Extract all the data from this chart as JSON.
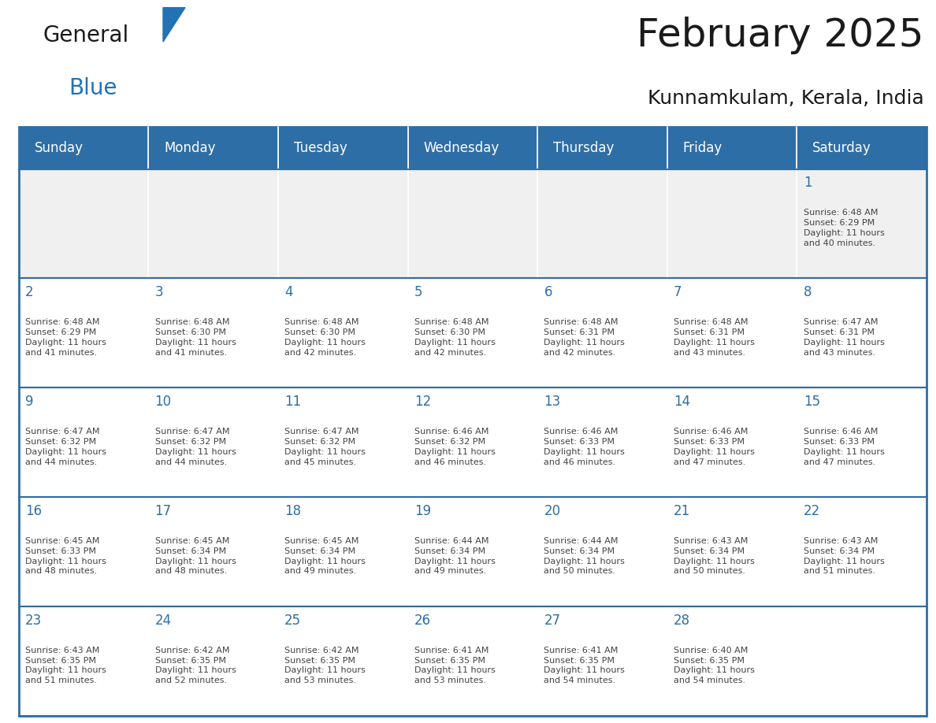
{
  "title": "February 2025",
  "subtitle": "Kunnamkulam, Kerala, India",
  "header_bg": "#2E6EA6",
  "header_text_color": "#FFFFFF",
  "cell_bg_light": "#F0F0F0",
  "cell_bg_white": "#FFFFFF",
  "day_number_color": "#2E6EA6",
  "text_color": "#444444",
  "border_color": "#2E6EA6",
  "weekdays": [
    "Sunday",
    "Monday",
    "Tuesday",
    "Wednesday",
    "Thursday",
    "Friday",
    "Saturday"
  ],
  "weeks": [
    [
      {
        "day": 0,
        "info": ""
      },
      {
        "day": 0,
        "info": ""
      },
      {
        "day": 0,
        "info": ""
      },
      {
        "day": 0,
        "info": ""
      },
      {
        "day": 0,
        "info": ""
      },
      {
        "day": 0,
        "info": ""
      },
      {
        "day": 1,
        "info": "Sunrise: 6:48 AM\nSunset: 6:29 PM\nDaylight: 11 hours\nand 40 minutes."
      }
    ],
    [
      {
        "day": 2,
        "info": "Sunrise: 6:48 AM\nSunset: 6:29 PM\nDaylight: 11 hours\nand 41 minutes."
      },
      {
        "day": 3,
        "info": "Sunrise: 6:48 AM\nSunset: 6:30 PM\nDaylight: 11 hours\nand 41 minutes."
      },
      {
        "day": 4,
        "info": "Sunrise: 6:48 AM\nSunset: 6:30 PM\nDaylight: 11 hours\nand 42 minutes."
      },
      {
        "day": 5,
        "info": "Sunrise: 6:48 AM\nSunset: 6:30 PM\nDaylight: 11 hours\nand 42 minutes."
      },
      {
        "day": 6,
        "info": "Sunrise: 6:48 AM\nSunset: 6:31 PM\nDaylight: 11 hours\nand 42 minutes."
      },
      {
        "day": 7,
        "info": "Sunrise: 6:48 AM\nSunset: 6:31 PM\nDaylight: 11 hours\nand 43 minutes."
      },
      {
        "day": 8,
        "info": "Sunrise: 6:47 AM\nSunset: 6:31 PM\nDaylight: 11 hours\nand 43 minutes."
      }
    ],
    [
      {
        "day": 9,
        "info": "Sunrise: 6:47 AM\nSunset: 6:32 PM\nDaylight: 11 hours\nand 44 minutes."
      },
      {
        "day": 10,
        "info": "Sunrise: 6:47 AM\nSunset: 6:32 PM\nDaylight: 11 hours\nand 44 minutes."
      },
      {
        "day": 11,
        "info": "Sunrise: 6:47 AM\nSunset: 6:32 PM\nDaylight: 11 hours\nand 45 minutes."
      },
      {
        "day": 12,
        "info": "Sunrise: 6:46 AM\nSunset: 6:32 PM\nDaylight: 11 hours\nand 46 minutes."
      },
      {
        "day": 13,
        "info": "Sunrise: 6:46 AM\nSunset: 6:33 PM\nDaylight: 11 hours\nand 46 minutes."
      },
      {
        "day": 14,
        "info": "Sunrise: 6:46 AM\nSunset: 6:33 PM\nDaylight: 11 hours\nand 47 minutes."
      },
      {
        "day": 15,
        "info": "Sunrise: 6:46 AM\nSunset: 6:33 PM\nDaylight: 11 hours\nand 47 minutes."
      }
    ],
    [
      {
        "day": 16,
        "info": "Sunrise: 6:45 AM\nSunset: 6:33 PM\nDaylight: 11 hours\nand 48 minutes."
      },
      {
        "day": 17,
        "info": "Sunrise: 6:45 AM\nSunset: 6:34 PM\nDaylight: 11 hours\nand 48 minutes."
      },
      {
        "day": 18,
        "info": "Sunrise: 6:45 AM\nSunset: 6:34 PM\nDaylight: 11 hours\nand 49 minutes."
      },
      {
        "day": 19,
        "info": "Sunrise: 6:44 AM\nSunset: 6:34 PM\nDaylight: 11 hours\nand 49 minutes."
      },
      {
        "day": 20,
        "info": "Sunrise: 6:44 AM\nSunset: 6:34 PM\nDaylight: 11 hours\nand 50 minutes."
      },
      {
        "day": 21,
        "info": "Sunrise: 6:43 AM\nSunset: 6:34 PM\nDaylight: 11 hours\nand 50 minutes."
      },
      {
        "day": 22,
        "info": "Sunrise: 6:43 AM\nSunset: 6:34 PM\nDaylight: 11 hours\nand 51 minutes."
      }
    ],
    [
      {
        "day": 23,
        "info": "Sunrise: 6:43 AM\nSunset: 6:35 PM\nDaylight: 11 hours\nand 51 minutes."
      },
      {
        "day": 24,
        "info": "Sunrise: 6:42 AM\nSunset: 6:35 PM\nDaylight: 11 hours\nand 52 minutes."
      },
      {
        "day": 25,
        "info": "Sunrise: 6:42 AM\nSunset: 6:35 PM\nDaylight: 11 hours\nand 53 minutes."
      },
      {
        "day": 26,
        "info": "Sunrise: 6:41 AM\nSunset: 6:35 PM\nDaylight: 11 hours\nand 53 minutes."
      },
      {
        "day": 27,
        "info": "Sunrise: 6:41 AM\nSunset: 6:35 PM\nDaylight: 11 hours\nand 54 minutes."
      },
      {
        "day": 28,
        "info": "Sunrise: 6:40 AM\nSunset: 6:35 PM\nDaylight: 11 hours\nand 54 minutes."
      },
      {
        "day": 0,
        "info": ""
      }
    ]
  ],
  "logo_text_general": "General",
  "logo_text_blue": "Blue",
  "logo_color_general": "#1a1a1a",
  "logo_color_blue": "#2272B5",
  "logo_triangle_color": "#2272B5",
  "title_fontsize": 36,
  "subtitle_fontsize": 18,
  "header_fontsize": 12,
  "day_num_fontsize": 12,
  "cell_text_fontsize": 8
}
